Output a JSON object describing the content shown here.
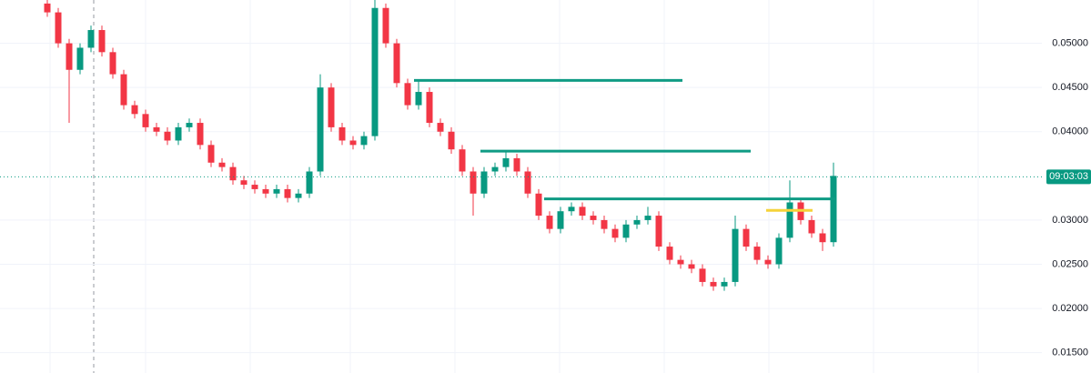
{
  "chart_data": {
    "type": "candlestick",
    "open": [
      0.0545,
      0.0535,
      0.05,
      0.047,
      0.0495,
      0.0515,
      0.049,
      0.0465,
      0.043,
      0.042,
      0.0405,
      0.04,
      0.039,
      0.0405,
      0.041,
      0.0385,
      0.0365,
      0.036,
      0.0345,
      0.034,
      0.0335,
      0.033,
      0.0335,
      0.0325,
      0.033,
      0.0355,
      0.045,
      0.0405,
      0.039,
      0.0385,
      0.0395,
      0.054,
      0.05,
      0.0455,
      0.043,
      0.0445,
      0.041,
      0.04,
      0.038,
      0.0355,
      0.033,
      0.0355,
      0.036,
      0.037,
      0.0355,
      0.033,
      0.0305,
      0.029,
      0.031,
      0.0315,
      0.0305,
      0.03,
      0.029,
      0.028,
      0.0295,
      0.03,
      0.0305,
      0.027,
      0.0255,
      0.025,
      0.0245,
      0.023,
      0.0225,
      0.023,
      0.029,
      0.027,
      0.0255,
      0.025,
      0.028,
      0.032,
      0.03,
      0.0285,
      0.0275
    ],
    "high": [
      0.055,
      0.054,
      0.0505,
      0.05,
      0.052,
      0.052,
      0.0495,
      0.047,
      0.0435,
      0.0425,
      0.041,
      0.0405,
      0.041,
      0.0415,
      0.0415,
      0.039,
      0.037,
      0.0365,
      0.035,
      0.0345,
      0.034,
      0.034,
      0.034,
      0.0335,
      0.036,
      0.0465,
      0.0455,
      0.041,
      0.0395,
      0.04,
      0.0549,
      0.0545,
      0.0505,
      0.046,
      0.0458,
      0.045,
      0.0415,
      0.0405,
      0.0385,
      0.036,
      0.036,
      0.0365,
      0.0378,
      0.0375,
      0.036,
      0.0335,
      0.031,
      0.0315,
      0.032,
      0.032,
      0.031,
      0.0305,
      0.0295,
      0.03,
      0.0305,
      0.0315,
      0.031,
      0.0275,
      0.026,
      0.0255,
      0.025,
      0.0235,
      0.0235,
      0.0305,
      0.0295,
      0.0275,
      0.026,
      0.0285,
      0.0345,
      0.0325,
      0.0305,
      0.029,
      0.0365
    ],
    "low": [
      0.053,
      0.0495,
      0.041,
      0.0465,
      0.049,
      0.0485,
      0.046,
      0.0425,
      0.0415,
      0.04,
      0.0395,
      0.0385,
      0.0385,
      0.04,
      0.038,
      0.036,
      0.0355,
      0.034,
      0.0335,
      0.033,
      0.0325,
      0.0325,
      0.032,
      0.032,
      0.0325,
      0.035,
      0.04,
      0.0385,
      0.038,
      0.038,
      0.039,
      0.0495,
      0.045,
      0.0425,
      0.0425,
      0.0405,
      0.0395,
      0.0375,
      0.035,
      0.0305,
      0.0325,
      0.035,
      0.0355,
      0.035,
      0.0325,
      0.03,
      0.0285,
      0.0285,
      0.0305,
      0.03,
      0.0295,
      0.0285,
      0.0275,
      0.0275,
      0.029,
      0.0295,
      0.0265,
      0.025,
      0.0245,
      0.024,
      0.0225,
      0.022,
      0.022,
      0.0225,
      0.0265,
      0.025,
      0.0245,
      0.0245,
      0.0275,
      0.0295,
      0.028,
      0.0265,
      0.027
    ],
    "close": [
      0.0535,
      0.05,
      0.047,
      0.0495,
      0.0515,
      0.049,
      0.0465,
      0.043,
      0.042,
      0.0405,
      0.04,
      0.039,
      0.0405,
      0.041,
      0.0385,
      0.0365,
      0.036,
      0.0345,
      0.034,
      0.0335,
      0.033,
      0.0335,
      0.0325,
      0.033,
      0.0355,
      0.045,
      0.0405,
      0.039,
      0.0385,
      0.0395,
      0.054,
      0.05,
      0.0455,
      0.043,
      0.0445,
      0.041,
      0.04,
      0.038,
      0.0355,
      0.033,
      0.0355,
      0.036,
      0.037,
      0.0355,
      0.033,
      0.0305,
      0.029,
      0.031,
      0.0315,
      0.0305,
      0.03,
      0.029,
      0.028,
      0.0295,
      0.03,
      0.0305,
      0.027,
      0.0255,
      0.025,
      0.0245,
      0.023,
      0.0225,
      0.023,
      0.029,
      0.027,
      0.0255,
      0.025,
      0.028,
      0.032,
      0.03,
      0.0285,
      0.0275,
      0.035
    ],
    "up_color": "#089981",
    "down_color": "#f23645",
    "ylim": [
      0.0127,
      0.0549
    ],
    "yticks": [
      {
        "value": 0.015,
        "label": "0.01500"
      },
      {
        "value": 0.02,
        "label": "0.02000"
      },
      {
        "value": 0.025,
        "label": "0.02500"
      },
      {
        "value": 0.03,
        "label": "0.03000"
      },
      {
        "value": 0.04,
        "label": "0.04000"
      },
      {
        "value": 0.045,
        "label": "0.04500"
      },
      {
        "value": 0.05,
        "label": "0.05000"
      }
    ],
    "grid": true,
    "current_price": {
      "value": 0.0349,
      "label": "09:03:03",
      "color": "#089981"
    },
    "levels": [
      {
        "value": 0.0458,
        "color": "#0f9b84"
      },
      {
        "value": 0.0378,
        "color": "#0f9b84"
      },
      {
        "value": 0.0324,
        "color": "#0f9b84"
      },
      {
        "value": 0.0311,
        "color": "#f5d33a"
      }
    ]
  }
}
